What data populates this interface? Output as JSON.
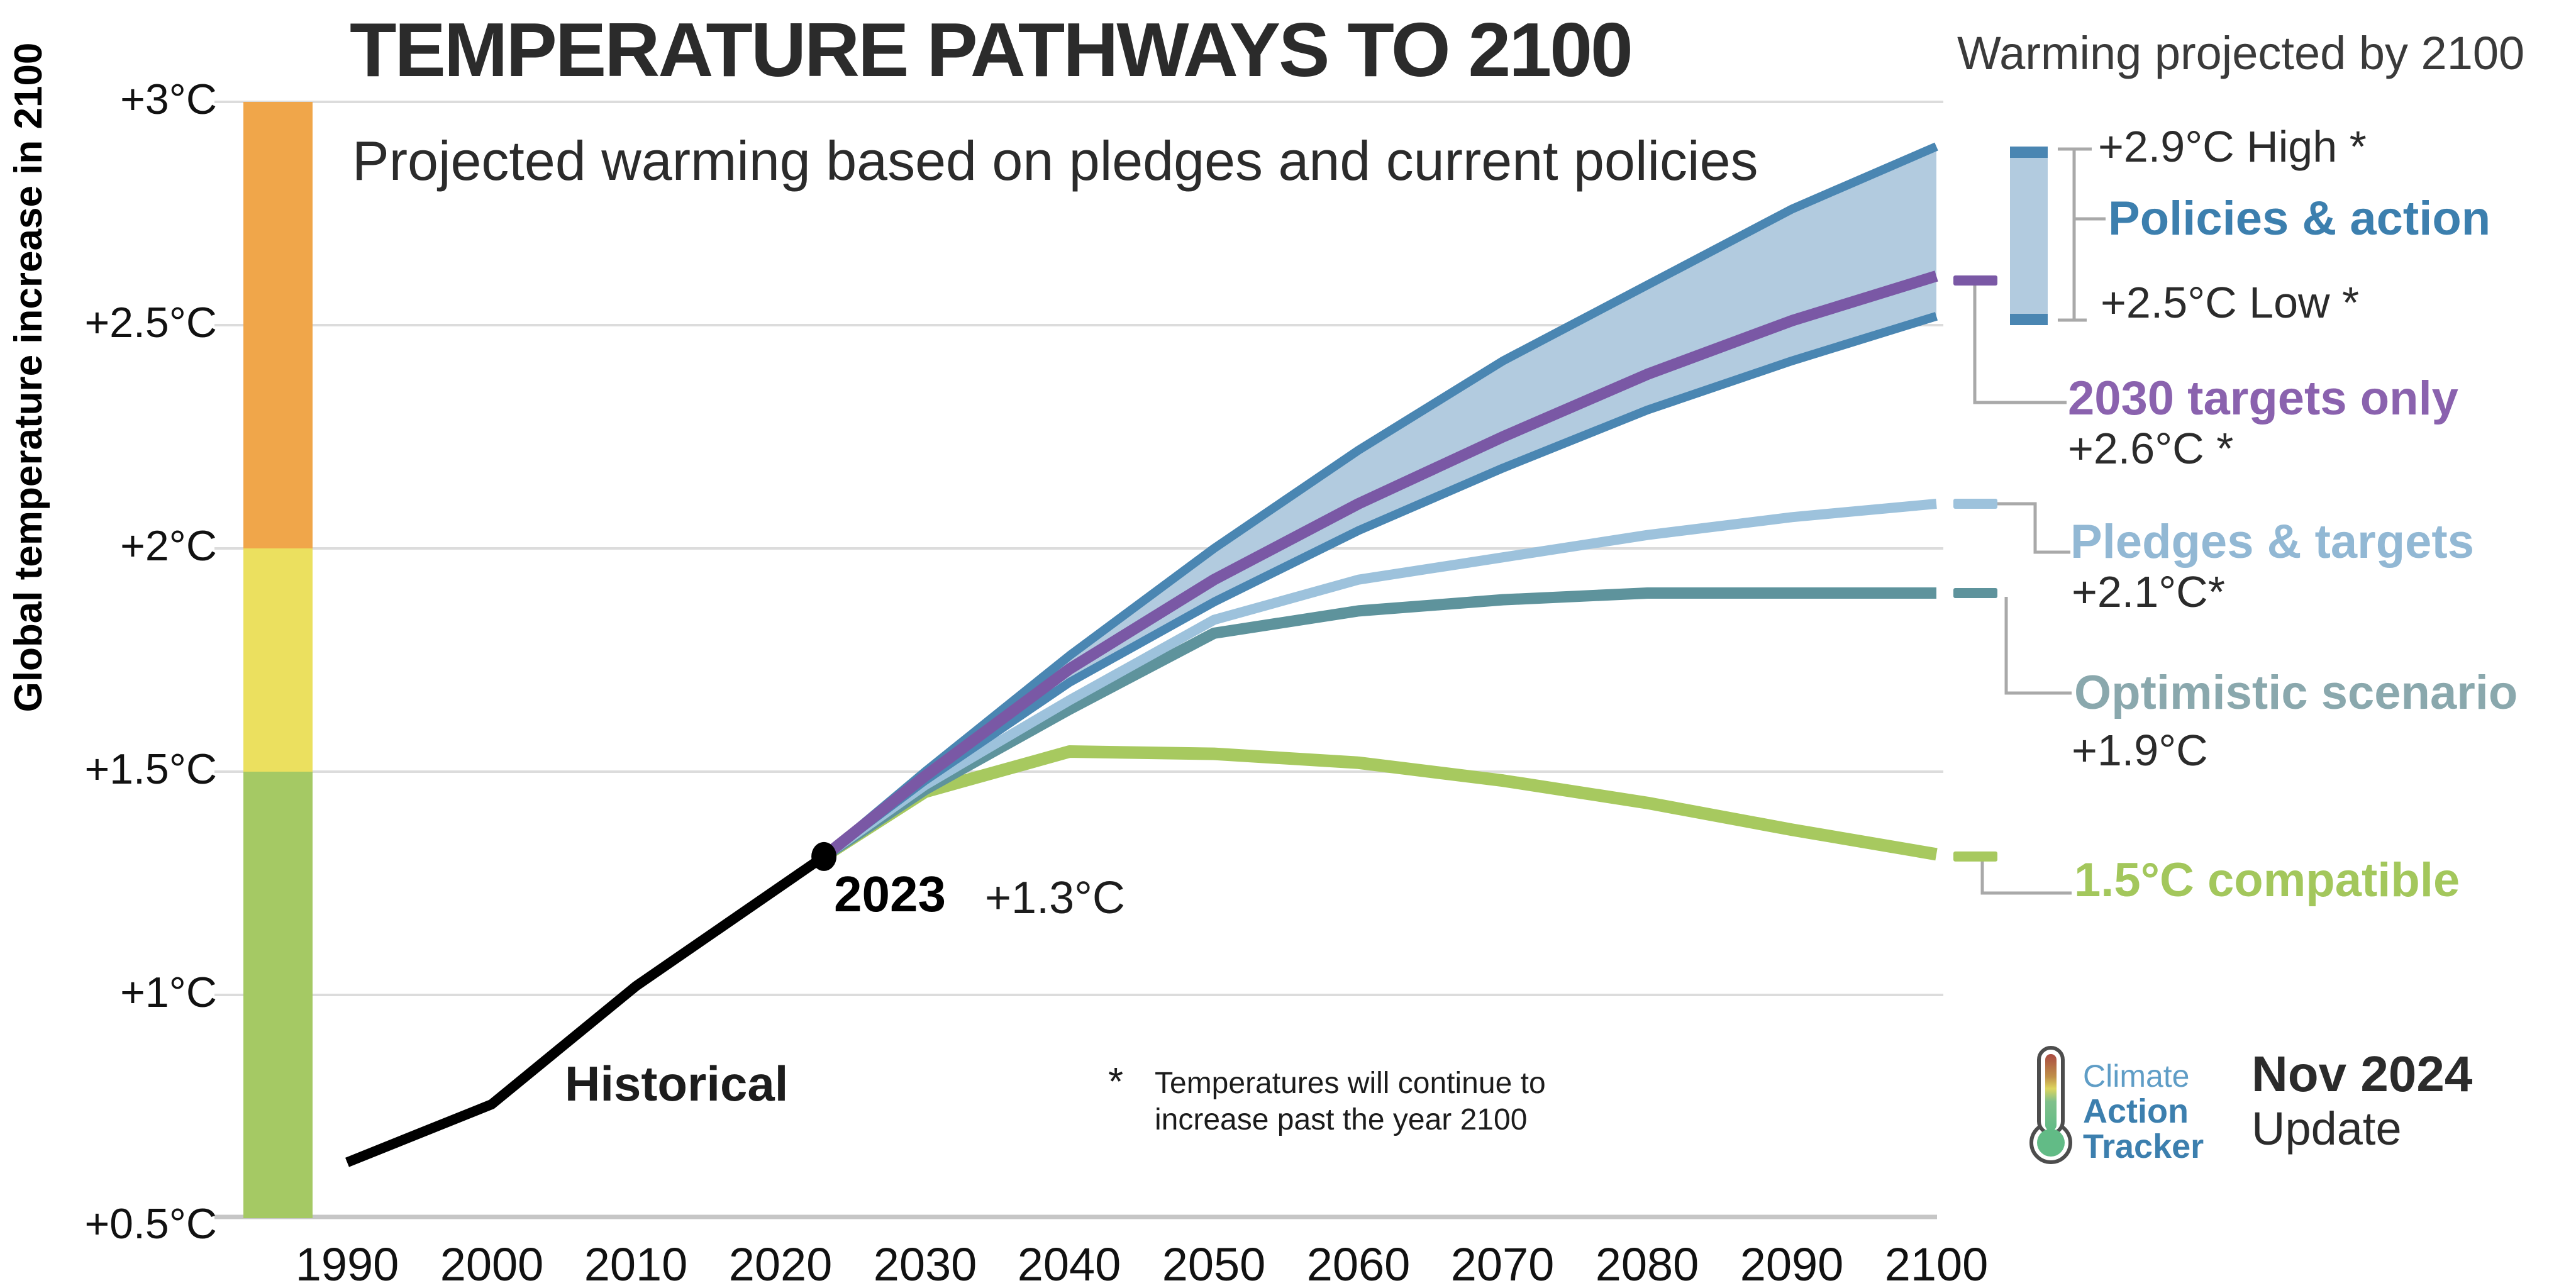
{
  "header": {
    "title": "TEMPERATURE PATHWAYS TO 2100",
    "subtitle": "Projected warming based on pledges and current policies"
  },
  "right_panel": {
    "header": "Warming projected by 2100",
    "policies_high": "+2.9°C High *",
    "policies_label": "Policies & action",
    "policies_low": "+2.5°C Low *",
    "targets2030_label": "2030 targets only",
    "targets2030_value": "+2.6°C *",
    "pledges_label": "Pledges & targets",
    "pledges_value": "+2.1°C*",
    "optimistic_label": "Optimistic scenario",
    "optimistic_value": "+1.9°C",
    "compatible_label": "1.5°C compatible"
  },
  "annotations": {
    "year_label": "2023",
    "year_value": "+1.3°C",
    "historical_label": "Historical",
    "footnote_mark": "*",
    "footnote": "Temperatures will continue to\nincrease past the year 2100"
  },
  "branding": {
    "logo_line1": "Climate",
    "logo_line2": "Action",
    "logo_line3": "Tracker",
    "date": "Nov 2024",
    "date_sub": "Update"
  },
  "colors": {
    "gridline": "#dcdcdc",
    "axis_line": "#c6c6c6",
    "gray_connector": "#a9a9a9",
    "band_fill": "#b2cbdf",
    "band_edge": "#4a86b2",
    "purple": "#7a58a5",
    "purple_label": "#8a62ae",
    "light_blue": "#9dc2dc",
    "light_blue_label": "#92b8d4",
    "teal": "#5e939c",
    "teal_label": "#8aa8ad",
    "green": "#a7c95f",
    "green_label": "#a3c75c",
    "blue_label": "#3c7fae",
    "logo_light_blue": "#5f9dc6",
    "zone_orange": "#f0a64a",
    "zone_yellow": "#ebe05f",
    "zone_green": "#a5c964",
    "historical": "#000000",
    "text_dark": "#2b2b2b"
  },
  "chart_data": {
    "type": "line",
    "title": "TEMPERATURE PATHWAYS TO 2100",
    "subtitle": "Projected warming based on pledges and current policies",
    "xlabel": "",
    "ylabel": "Global temperature increase in 2100",
    "xlim": [
      1981,
      2101
    ],
    "ylim": [
      0.5,
      3.05
    ],
    "grid": "horizontal",
    "legend_position": "right",
    "x_ticks": [
      1990,
      2000,
      2010,
      2020,
      2030,
      2040,
      2050,
      2060,
      2070,
      2080,
      2090,
      2100
    ],
    "y_tick_labels": [
      "+3°C",
      "+2.5°C",
      "+2°C",
      "+1.5°C",
      "+1°C",
      "+0.5°C"
    ],
    "y_tick_values": [
      3,
      2.5,
      2,
      1.5,
      1,
      0.5
    ],
    "temperature_zones": [
      {
        "from": 2.0,
        "to": 3.0,
        "color": "#f0a64a"
      },
      {
        "from": 1.5,
        "to": 2.0,
        "color": "#ebe05f"
      },
      {
        "from": 0.5,
        "to": 1.5,
        "color": "#a5c964"
      }
    ],
    "point_2023": {
      "year": 2023,
      "value": 1.3,
      "label": "2023",
      "value_label": "+1.3°C"
    },
    "band": {
      "name": "Policies & action",
      "high_value_2100": 2.9,
      "low_value_2100": 2.5,
      "fill_color": "#b2cbdf",
      "edge_color": "#4a86b2",
      "high": [
        [
          2023,
          1.31
        ],
        [
          2030,
          1.5
        ],
        [
          2040,
          1.76
        ],
        [
          2050,
          2.0
        ],
        [
          2060,
          2.22
        ],
        [
          2070,
          2.42
        ],
        [
          2080,
          2.59
        ],
        [
          2090,
          2.76
        ],
        [
          2100,
          2.9
        ]
      ],
      "low": [
        [
          2023,
          1.31
        ],
        [
          2030,
          1.48
        ],
        [
          2040,
          1.7
        ],
        [
          2050,
          1.88
        ],
        [
          2060,
          2.04
        ],
        [
          2070,
          2.18
        ],
        [
          2080,
          2.31
        ],
        [
          2090,
          2.42
        ],
        [
          2100,
          2.52
        ]
      ]
    },
    "series": [
      {
        "key": "compatible",
        "name": "1.5°C compatible",
        "color": "#a7c95f",
        "width": 20,
        "dash_value": 1.31,
        "points": [
          [
            2023,
            1.31
          ],
          [
            2030,
            1.455
          ],
          [
            2040,
            1.545
          ],
          [
            2050,
            1.54
          ],
          [
            2060,
            1.52
          ],
          [
            2070,
            1.48
          ],
          [
            2080,
            1.43
          ],
          [
            2090,
            1.37
          ],
          [
            2100,
            1.315
          ]
        ]
      },
      {
        "key": "optimistic",
        "name": "Optimistic scenario",
        "color": "#5e939c",
        "width": 18,
        "dash_value": 1.9,
        "points": [
          [
            2023,
            1.31
          ],
          [
            2030,
            1.46
          ],
          [
            2040,
            1.64
          ],
          [
            2050,
            1.81
          ],
          [
            2060,
            1.86
          ],
          [
            2070,
            1.885
          ],
          [
            2080,
            1.9
          ],
          [
            2090,
            1.9
          ],
          [
            2100,
            1.9
          ]
        ]
      },
      {
        "key": "pledges",
        "name": "Pledges & targets",
        "color": "#9dc2dc",
        "width": 16,
        "dash_value": 2.1,
        "points": [
          [
            2023,
            1.31
          ],
          [
            2030,
            1.47
          ],
          [
            2040,
            1.66
          ],
          [
            2050,
            1.84
          ],
          [
            2060,
            1.93
          ],
          [
            2070,
            1.98
          ],
          [
            2080,
            2.03
          ],
          [
            2090,
            2.07
          ],
          [
            2100,
            2.1
          ]
        ]
      },
      {
        "key": "targets2030",
        "name": "2030 targets only",
        "color": "#7a58a5",
        "width": 18,
        "dash_value": 2.6,
        "points": [
          [
            2023,
            1.31
          ],
          [
            2030,
            1.49
          ],
          [
            2040,
            1.73
          ],
          [
            2050,
            1.93
          ],
          [
            2060,
            2.1
          ],
          [
            2070,
            2.25
          ],
          [
            2080,
            2.39
          ],
          [
            2090,
            2.51
          ],
          [
            2100,
            2.61
          ]
        ]
      },
      {
        "key": "historical",
        "name": "Historical",
        "color": "#000000",
        "width": 16,
        "dash_value": null,
        "points": [
          [
            1990,
            0.625
          ],
          [
            1995,
            0.69
          ],
          [
            2000,
            0.755
          ],
          [
            2010,
            1.02
          ],
          [
            2023,
            1.31
          ]
        ]
      }
    ]
  }
}
